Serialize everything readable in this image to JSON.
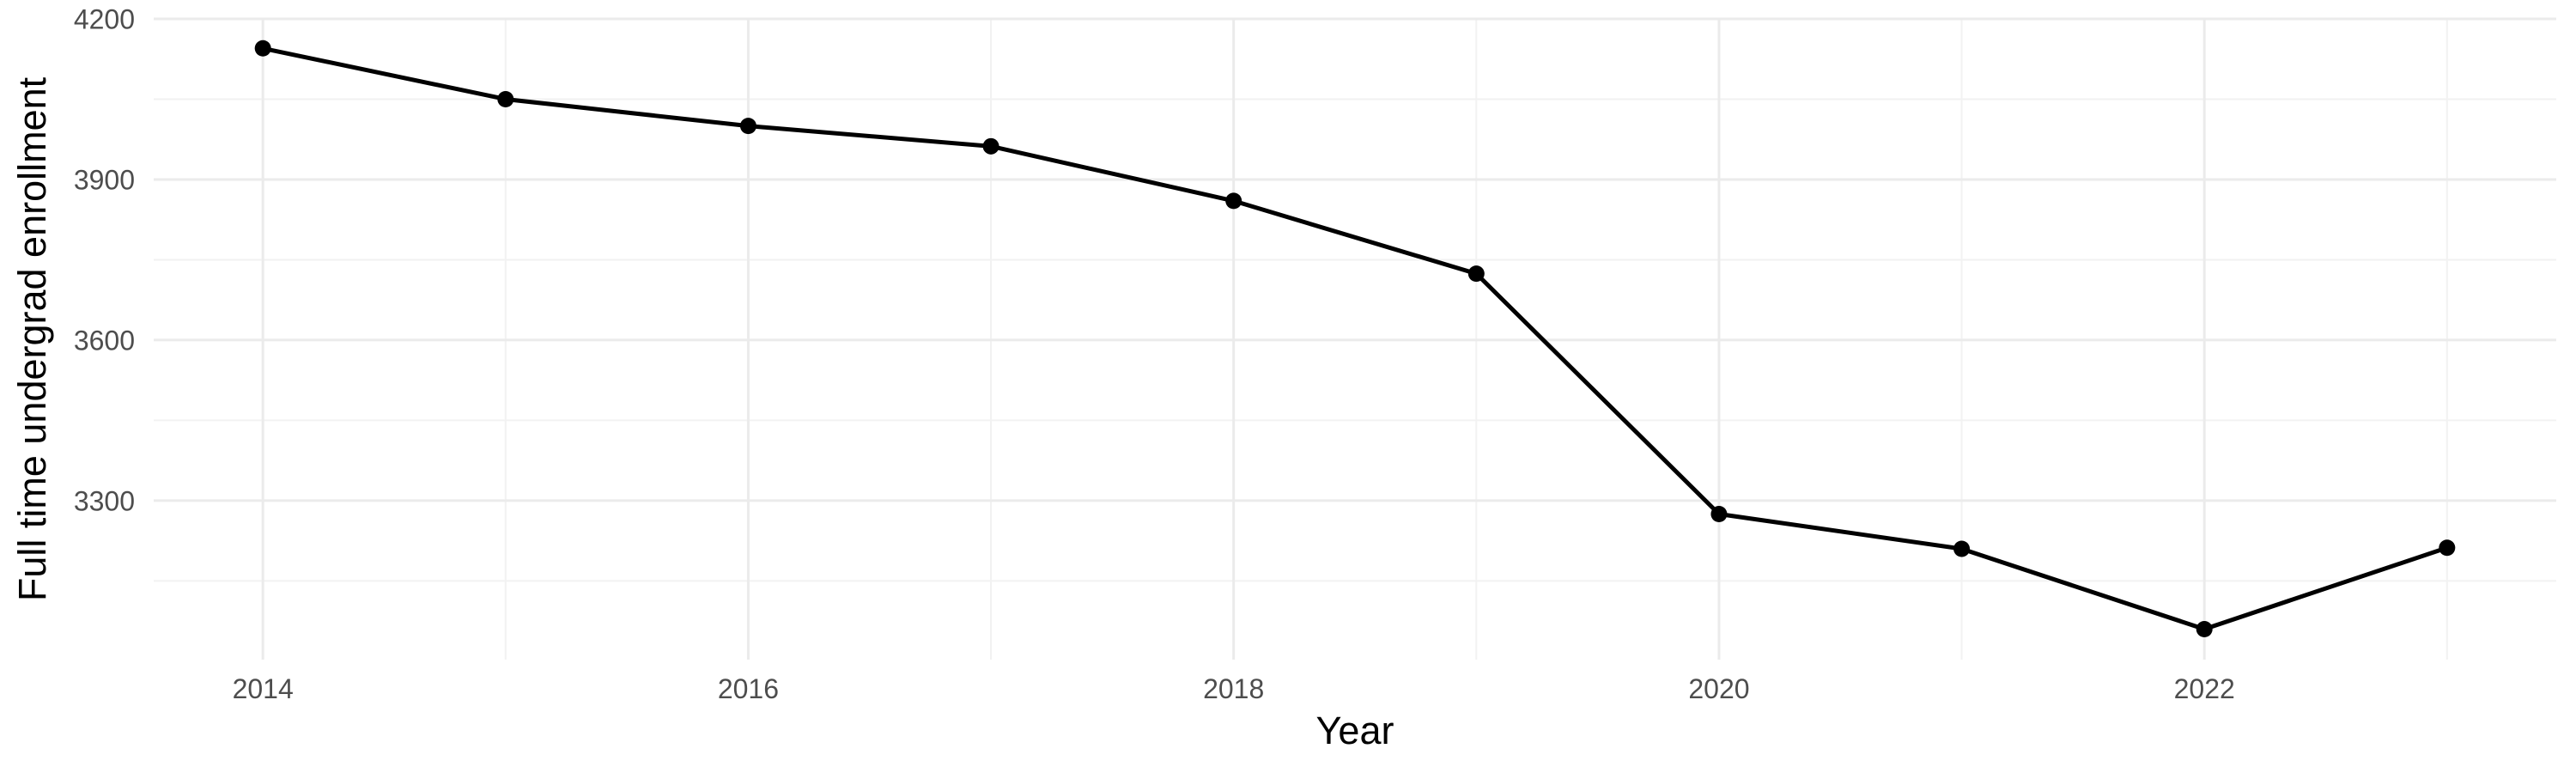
{
  "chart_data": {
    "type": "line",
    "title": "",
    "xlabel": "Year",
    "ylabel": "Full time undergrad enrollment",
    "x": [
      2014,
      2015,
      2016,
      2017,
      2018,
      2019,
      2020,
      2021,
      2022,
      2023
    ],
    "series": [
      {
        "name": "Full time undergrad enrollment",
        "values": [
          4145,
          4050,
          4000,
          3962,
          3860,
          3724,
          3275,
          3210,
          3060,
          3212
        ]
      }
    ],
    "xlim": [
      2013.55,
      2023.45
    ],
    "ylim": [
      3003,
      4200
    ],
    "x_major_ticks": [
      2014,
      2016,
      2018,
      2020,
      2022
    ],
    "x_major_tick_labels": [
      "2014",
      "2016",
      "2018",
      "2020",
      "2022"
    ],
    "x_minor_gridlines": [
      2015,
      2017,
      2019,
      2021,
      2023
    ],
    "y_major_ticks": [
      3300,
      3600,
      3900,
      4200
    ],
    "y_major_tick_labels": [
      "3300",
      "3600",
      "3900",
      "4200"
    ],
    "y_minor_gridlines": [
      3150,
      3450,
      3750,
      4050
    ],
    "grid": true,
    "legend": false,
    "marker": "point",
    "colors": {
      "line": "#000000",
      "point": "#000000",
      "grid_major": "#EBEBEB",
      "grid_minor": "#F2F2F2",
      "tick_label": "#4D4D4D",
      "axis_title": "#000000",
      "background": "#FFFFFF"
    }
  }
}
